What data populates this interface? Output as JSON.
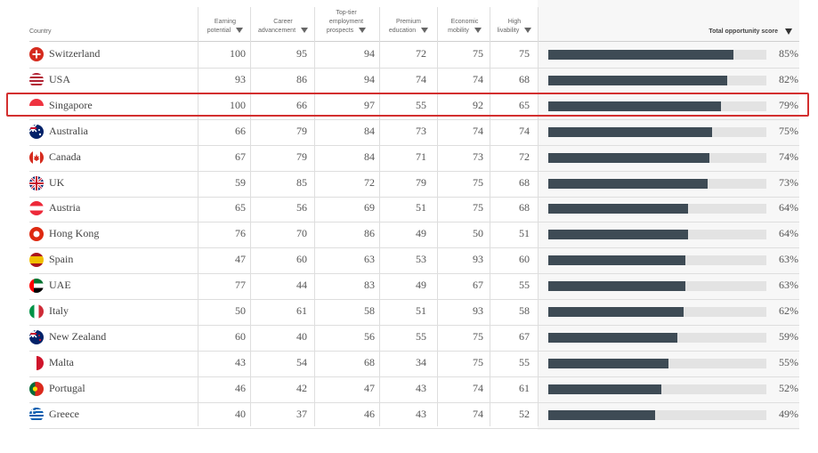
{
  "headers": {
    "country": "Country",
    "earning": [
      "Earning",
      "potential"
    ],
    "career": [
      "Career",
      "advancement"
    ],
    "topTier": [
      "Top-tier",
      "employment",
      "prospects"
    ],
    "premium": [
      "Premium",
      "education"
    ],
    "economic": [
      "Economic",
      "mobility"
    ],
    "livability": [
      "High",
      "livability"
    ],
    "total": "Total opportunity score"
  },
  "highlight_color": "#d32f2f",
  "bar_color": "#3e4b55",
  "chart_data": {
    "type": "table",
    "columns": [
      "Country",
      "Earning potential",
      "Career advancement",
      "Top-tier employment prospects",
      "Premium education",
      "Economic mobility",
      "High livability",
      "Total opportunity score"
    ],
    "highlighted_row": "Singapore",
    "rows": [
      {
        "country": "Switzerland",
        "flag": "switzerland-flag-icon",
        "values": [
          "100",
          "95",
          "94",
          "72",
          "75",
          "75"
        ],
        "total": 85,
        "total_label": "85%"
      },
      {
        "country": "USA",
        "flag": "usa-flag-icon",
        "values": [
          "93",
          "86",
          "94",
          "74",
          "74",
          "68"
        ],
        "total": 82,
        "total_label": "82%"
      },
      {
        "country": "Singapore",
        "flag": "singapore-flag-icon",
        "values": [
          "100",
          "66",
          "97",
          "55",
          "92",
          "65"
        ],
        "total": 79,
        "total_label": "79%"
      },
      {
        "country": "Australia",
        "flag": "australia-flag-icon",
        "values": [
          "66",
          "79",
          "84",
          "73",
          "74",
          "74"
        ],
        "total": 75,
        "total_label": "75%"
      },
      {
        "country": "Canada",
        "flag": "canada-flag-icon",
        "values": [
          "67",
          "79",
          "84",
          "71",
          "73",
          "72"
        ],
        "total": 74,
        "total_label": "74%"
      },
      {
        "country": "UK",
        "flag": "uk-flag-icon",
        "values": [
          "59",
          "85",
          "72",
          "79",
          "75",
          "68"
        ],
        "total": 73,
        "total_label": "73%"
      },
      {
        "country": "Austria",
        "flag": "austria-flag-icon",
        "values": [
          "65",
          "56",
          "69",
          "51",
          "75",
          "68"
        ],
        "total": 64,
        "total_label": "64%"
      },
      {
        "country": "Hong Kong",
        "flag": "hong-kong-flag-icon",
        "values": [
          "76",
          "70",
          "86",
          "49",
          "50",
          "51"
        ],
        "total": 64,
        "total_label": "64%"
      },
      {
        "country": "Spain",
        "flag": "spain-flag-icon",
        "values": [
          "47",
          "60",
          "63",
          "53",
          "93",
          "60"
        ],
        "total": 63,
        "total_label": "63%"
      },
      {
        "country": "UAE",
        "flag": "uae-flag-icon",
        "values": [
          "77",
          "44",
          "83",
          "49",
          "67",
          "55"
        ],
        "total": 63,
        "total_label": "63%"
      },
      {
        "country": "Italy",
        "flag": "italy-flag-icon",
        "values": [
          "50",
          "61",
          "58",
          "51",
          "93",
          "58"
        ],
        "total": 62,
        "total_label": "62%"
      },
      {
        "country": "New Zealand",
        "flag": "new-zealand-flag-icon",
        "values": [
          "60",
          "40",
          "56",
          "55",
          "75",
          "67"
        ],
        "total": 59,
        "total_label": "59%"
      },
      {
        "country": "Malta",
        "flag": "malta-flag-icon",
        "values": [
          "43",
          "54",
          "68",
          "34",
          "75",
          "55"
        ],
        "total": 55,
        "total_label": "55%"
      },
      {
        "country": "Portugal",
        "flag": "portugal-flag-icon",
        "values": [
          "46",
          "42",
          "47",
          "43",
          "74",
          "61"
        ],
        "total": 52,
        "total_label": "52%"
      },
      {
        "country": "Greece",
        "flag": "greece-flag-icon",
        "values": [
          "40",
          "37",
          "46",
          "43",
          "74",
          "52"
        ],
        "total": 49,
        "total_label": "49%"
      }
    ]
  }
}
